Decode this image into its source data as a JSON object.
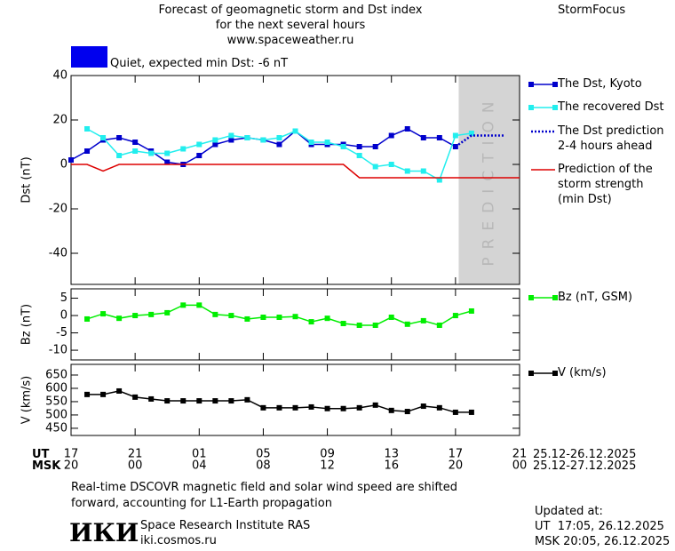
{
  "header": {
    "title": "Forecast of geomagnetic storm and Dst index\nfor the next several hours\nwww.spaceweather.ru",
    "brand": "StormFocus",
    "status": {
      "text": "Quiet, expected min Dst: -6 nT",
      "color": "#0000ee"
    }
  },
  "chart_data": [
    {
      "type": "line",
      "y_label": "Dst (nT)",
      "xlim": [
        17,
        45
      ],
      "xticks": [
        17,
        21,
        25,
        29,
        33,
        37,
        41,
        45
      ],
      "ylim": [
        -54,
        40
      ],
      "yticks": [
        -40,
        -20,
        0,
        20,
        40
      ],
      "grid": false,
      "prediction_region": [
        41.2,
        45
      ],
      "prediction_label": "PREDICTION",
      "series": [
        {
          "name": "The Dst, Kyoto",
          "color": "#0000cc",
          "marker": "square",
          "style": "solid",
          "x": [
            17,
            18,
            19,
            20,
            21,
            22,
            23,
            24,
            25,
            26,
            27,
            28,
            29,
            30,
            31,
            32,
            33,
            34,
            35,
            36,
            37,
            38,
            39,
            40,
            41
          ],
          "values": [
            2,
            6,
            11,
            12,
            10,
            6,
            1,
            0,
            4,
            9,
            11,
            12,
            11,
            9,
            15,
            9,
            9,
            9,
            8,
            8,
            13,
            16,
            12,
            12,
            8
          ]
        },
        {
          "name": "The recovered Dst",
          "color": "#22eeee",
          "marker": "square",
          "style": "solid",
          "x": [
            18,
            19,
            20,
            21,
            22,
            23,
            24,
            25,
            26,
            27,
            28,
            29,
            30,
            31,
            32,
            33,
            34,
            35,
            36,
            37,
            38,
            39,
            40,
            41,
            42
          ],
          "values": [
            16,
            12,
            4,
            6,
            5,
            5,
            7,
            9,
            11,
            13,
            12,
            11,
            12,
            15,
            10,
            10,
            8,
            4,
            -1,
            0,
            -3,
            -3,
            -7,
            13,
            14
          ]
        },
        {
          "name": "The Dst prediction\n2-4 hours ahead",
          "color": "#0000cc",
          "marker": "none",
          "style": "dotted",
          "x": [
            41,
            42,
            43,
            44
          ],
          "values": [
            8,
            13,
            13,
            13
          ]
        },
        {
          "name": "Prediction of the\nstorm strength\n(min Dst)",
          "color": "#dd0000",
          "marker": "none",
          "style": "solid",
          "x": [
            17,
            18,
            19,
            20,
            34,
            35,
            45
          ],
          "values": [
            0,
            0,
            -3,
            0,
            0,
            -6,
            -6
          ]
        }
      ]
    },
    {
      "type": "line",
      "y_label": "Bz (nT)",
      "xlim": [
        17,
        45
      ],
      "xticks": [
        17,
        21,
        25,
        29,
        33,
        37,
        41,
        45
      ],
      "ylim": [
        -12.8,
        7.7
      ],
      "yticks": [
        -10,
        -5,
        0,
        5
      ],
      "grid": false,
      "series": [
        {
          "name": "Bz (nT, GSM)",
          "color": "#00ee00",
          "marker": "square",
          "style": "solid",
          "x": [
            18,
            19,
            20,
            21,
            22,
            23,
            24,
            25,
            26,
            27,
            28,
            29,
            30,
            31,
            32,
            33,
            34,
            35,
            36,
            37,
            38,
            39,
            40,
            41,
            42
          ],
          "values": [
            -1,
            0.5,
            -0.8,
            0,
            0.3,
            0.8,
            3,
            3,
            0.3,
            0,
            -1,
            -0.5,
            -0.5,
            -0.3,
            -1.8,
            -0.8,
            -2.3,
            -2.8,
            -2.8,
            -0.5,
            -2.5,
            -1.5,
            -2.8,
            0,
            1.3
          ]
        }
      ]
    },
    {
      "type": "line",
      "y_label": "V (km/s)",
      "xlim": [
        17,
        45
      ],
      "xticks": [
        {
          "value": 17,
          "label": "17"
        },
        {
          "value": 21,
          "label": "21"
        },
        {
          "value": 25,
          "label": "01"
        },
        {
          "value": 29,
          "label": "05"
        },
        {
          "value": 33,
          "label": "09"
        },
        {
          "value": 37,
          "label": "13"
        },
        {
          "value": 41,
          "label": "17"
        },
        {
          "value": 45,
          "label": "21"
        }
      ],
      "msk_tick_labels": [
        "20",
        "00",
        "04",
        "08",
        "12",
        "16",
        "20",
        "00"
      ],
      "ylim": [
        423,
        690
      ],
      "yticks": [
        450,
        500,
        550,
        600,
        650
      ],
      "grid": false,
      "series": [
        {
          "name": "V (km/s)",
          "color": "#000000",
          "marker": "square",
          "style": "solid",
          "x": [
            18,
            19,
            20,
            21,
            22,
            23,
            24,
            25,
            26,
            27,
            28,
            29,
            30,
            31,
            32,
            33,
            34,
            35,
            36,
            37,
            38,
            39,
            40,
            41,
            42
          ],
          "values": [
            577,
            577,
            590,
            567,
            560,
            553,
            553,
            553,
            553,
            553,
            557,
            527,
            527,
            527,
            530,
            524,
            524,
            527,
            537,
            517,
            513,
            533,
            527,
            510,
            510
          ]
        }
      ]
    }
  ],
  "footer": {
    "ut_label": "UT",
    "msk_label": "MSK",
    "ut_dates": "25.12-26.12.2025",
    "msk_dates": "25.12-27.12.2025",
    "note": "Real-time DSCOVR magnetic field and solar wind speed are shifted\nforward, accounting for L1-Earth propagation",
    "logo": "ИКИ",
    "institute": "Space Research Institute RAS",
    "url": "iki.cosmos.ru",
    "updated": "Updated at:",
    "updated_ut": "UT  17:05, 26.12.2025",
    "updated_msk": "MSK 20:05, 26.12.2025"
  }
}
